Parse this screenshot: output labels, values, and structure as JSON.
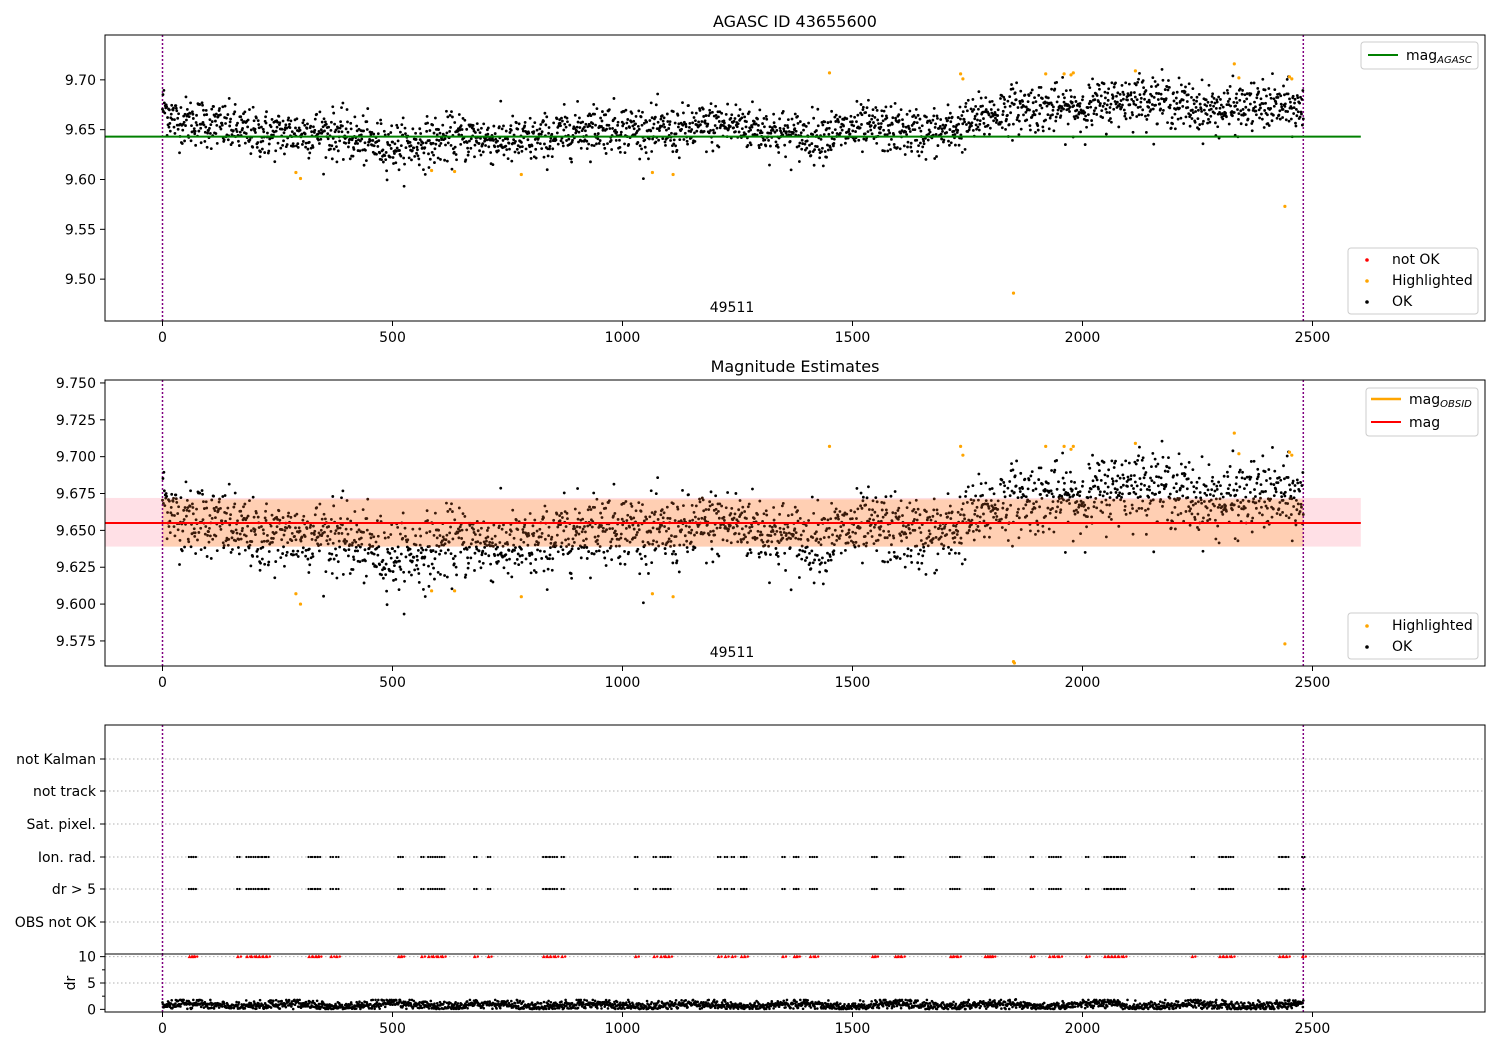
{
  "figure": {
    "panel1_title": "AGASC ID 43655600",
    "panel2_title": "Magnitude Estimates",
    "obsid_label": "49511"
  },
  "colors": {
    "ok": "#000000",
    "highlighted": "#ffa500",
    "not_ok": "#ff0000",
    "agasc_line": "#008000",
    "mag_line": "#ff0000",
    "mag_obsid_line": "#ffa500",
    "band_orange": "#ffcfb3",
    "band_pink": "#ffe0e6",
    "marker_line": "#800080",
    "flag_grid": "#b0b0b0"
  },
  "chart_data": [
    {
      "type": "scatter",
      "title": "AGASC ID 43655600",
      "xlim": [
        -125,
        2875
      ],
      "ylim": [
        9.458,
        9.745
      ],
      "xticks": [
        0,
        500,
        1000,
        1500,
        2000,
        2500
      ],
      "yticks": [
        9.5,
        9.55,
        9.6,
        9.65,
        9.7
      ],
      "ytick_labels": [
        "9.50",
        "9.55",
        "9.60",
        "9.65",
        "9.70"
      ],
      "legend_upper": [
        {
          "name": "mag",
          "sub": "AGASC",
          "color": "#008000"
        }
      ],
      "legend_lower": [
        {
          "name": "not OK",
          "color": "#ff0000"
        },
        {
          "name": "Highlighted",
          "color": "#ffa500"
        },
        {
          "name": "OK",
          "color": "#000000"
        }
      ],
      "legend_upper_placement": "top-right",
      "legend_lower_placement": "bottom-right",
      "mag_agasc": 9.643,
      "agasc_line_x": [
        -125,
        2605
      ],
      "obsid_boundaries": [
        0,
        2480
      ],
      "ok_series": {
        "x_range": [
          0,
          2480
        ],
        "n_points": 2480,
        "base_mag": 9.655,
        "scatter": 0.012
      },
      "highlighted_points": [
        [
          290,
          9.607
        ],
        [
          300,
          9.601
        ],
        [
          585,
          9.609
        ],
        [
          635,
          9.608
        ],
        [
          780,
          9.605
        ],
        [
          1065,
          9.607
        ],
        [
          1110,
          9.605
        ],
        [
          1450,
          9.707
        ],
        [
          1735,
          9.706
        ],
        [
          1740,
          9.701
        ],
        [
          1850,
          9.486
        ],
        [
          1920,
          9.706
        ],
        [
          1960,
          9.706
        ],
        [
          1975,
          9.705
        ],
        [
          1980,
          9.707
        ],
        [
          2115,
          9.709
        ],
        [
          2330,
          9.716
        ],
        [
          2340,
          9.702
        ],
        [
          2440,
          9.573
        ],
        [
          2450,
          9.703
        ],
        [
          2455,
          9.701
        ]
      ],
      "grid": false
    },
    {
      "type": "scatter",
      "title": "Magnitude Estimates",
      "xlim": [
        -125,
        2875
      ],
      "ylim": [
        9.558,
        9.752
      ],
      "xticks": [
        0,
        500,
        1000,
        1500,
        2000,
        2500
      ],
      "yticks": [
        9.575,
        9.6,
        9.625,
        9.65,
        9.675,
        9.7,
        9.725,
        9.75
      ],
      "ytick_labels": [
        "9.575",
        "9.600",
        "9.625",
        "9.650",
        "9.675",
        "9.700",
        "9.725",
        "9.750"
      ],
      "legend_upper": [
        {
          "name": "mag",
          "sub": "OBSID",
          "color": "#ffa500"
        },
        {
          "name": "mag",
          "sub": "",
          "color": "#ff0000"
        }
      ],
      "legend_lower": [
        {
          "name": "Highlighted",
          "color": "#ffa500"
        },
        {
          "name": "OK",
          "color": "#000000"
        }
      ],
      "legend_upper_placement": "top-right",
      "legend_lower_placement": "bottom-right",
      "mag": 9.655,
      "mag_band": [
        9.639,
        9.672
      ],
      "mag_obsid_band": [
        9.639,
        9.671
      ],
      "band_x": [
        -125,
        2605
      ],
      "obsid_boundaries": [
        0,
        2480
      ],
      "highlighted_points": [
        [
          290,
          9.607
        ],
        [
          300,
          9.6
        ],
        [
          585,
          9.609
        ],
        [
          635,
          9.609
        ],
        [
          780,
          9.605
        ],
        [
          1065,
          9.607
        ],
        [
          1110,
          9.605
        ],
        [
          1450,
          9.707
        ],
        [
          1735,
          9.707
        ],
        [
          1740,
          9.701
        ],
        [
          1850,
          9.561
        ],
        [
          1852,
          9.56
        ],
        [
          1920,
          9.707
        ],
        [
          1960,
          9.707
        ],
        [
          1975,
          9.705
        ],
        [
          1980,
          9.707
        ],
        [
          2115,
          9.709
        ],
        [
          2330,
          9.716
        ],
        [
          2340,
          9.702
        ],
        [
          2440,
          9.573
        ],
        [
          2450,
          9.703
        ],
        [
          2455,
          9.701
        ]
      ],
      "grid": false
    },
    {
      "type": "scatter",
      "title": "",
      "xlim": [
        -125,
        2875
      ],
      "categories": [
        "not Kalman",
        "not track",
        "Sat. pixel.",
        "Ion. rad.",
        "dr > 5",
        "OBS not OK"
      ],
      "flag_points_x": [
        60,
        65,
        70,
        165,
        185,
        195,
        205,
        212,
        220,
        228,
        320,
        328,
        335,
        340,
        368,
        380,
        515,
        520,
        565,
        580,
        590,
        600,
        610,
        680,
        710,
        830,
        838,
        845,
        855,
        870,
        1030,
        1070,
        1085,
        1095,
        1102,
        1210,
        1225,
        1240,
        1260,
        1267,
        1350,
        1375,
        1380,
        1410,
        1420,
        1545,
        1550,
        1595,
        1600,
        1608,
        1715,
        1720,
        1730,
        1790,
        1795,
        1800,
        1805,
        1890,
        1930,
        1940,
        1950,
        2010,
        2050,
        2058,
        2065,
        2072,
        2080,
        2090,
        2240,
        2300,
        2308,
        2315,
        2325,
        2430,
        2438,
        2445,
        2480
      ],
      "flagged_rows": [
        "Ion. rad.",
        "dr > 5"
      ],
      "grid": "dotted"
    },
    {
      "type": "scatter",
      "title": "",
      "ylabel": "dr",
      "xlim": [
        -125,
        2875
      ],
      "ylim": [
        -0.5,
        10.5
      ],
      "xticks": [
        0,
        500,
        1000,
        1500,
        2000,
        2500
      ],
      "yticks": [
        0,
        5,
        10
      ],
      "ytick_labels": [
        "0",
        "5",
        "10"
      ],
      "dr_threshold": 10,
      "dr_series": {
        "x_range": [
          0,
          2480
        ],
        "n_points": 2480,
        "base": 0.8,
        "scatter": 0.45
      },
      "dr_outliers": [
        [
          1855,
          1.9
        ]
      ],
      "grid": "dotted"
    }
  ]
}
